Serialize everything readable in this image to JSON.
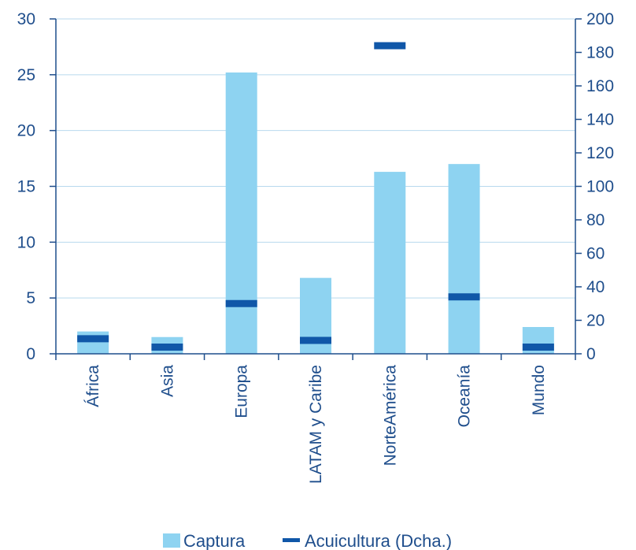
{
  "colors": {
    "bar": "#8ed3f1",
    "marker": "#1057a8",
    "axis": "#1f4e8c",
    "grid": "#b8d9ee",
    "text": "#1f4e8c"
  },
  "chart_data": {
    "type": "bar",
    "categories": [
      "África",
      "Asia",
      "Europa",
      "LATAM y Caribe",
      "NorteAmérica",
      "Oceanía",
      "Mundo"
    ],
    "series": [
      {
        "name": "Captura",
        "axis": "left",
        "kind": "bar",
        "values": [
          2.0,
          1.5,
          25.2,
          6.8,
          16.3,
          17.0,
          2.4
        ]
      },
      {
        "name": "Acuicultura (Dcha.)",
        "axis": "right",
        "kind": "marker",
        "values": [
          9,
          4,
          30,
          8,
          184,
          34,
          4
        ]
      }
    ],
    "y_left": {
      "min": 0,
      "max": 30,
      "ticks": [
        0,
        5,
        10,
        15,
        20,
        25,
        30
      ]
    },
    "y_right": {
      "min": 0,
      "max": 200,
      "ticks": [
        0,
        20,
        40,
        60,
        80,
        100,
        120,
        140,
        160,
        180,
        200
      ]
    },
    "grid": true,
    "legend_position": "bottom-center"
  }
}
